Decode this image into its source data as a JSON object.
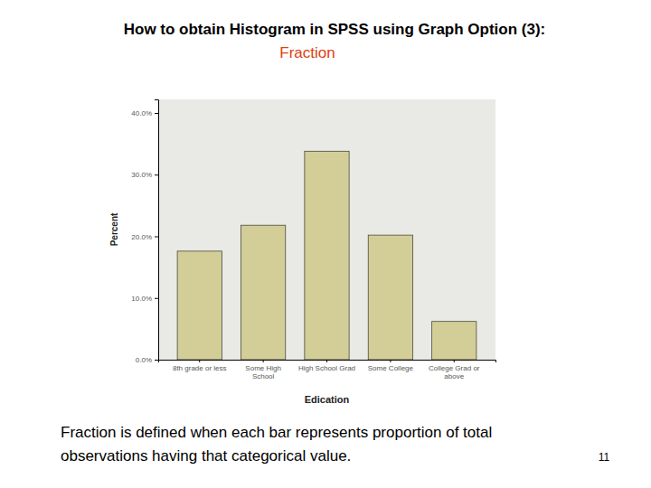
{
  "chart_data": {
    "type": "bar",
    "title": "How to obtain Histogram in SPSS using Graph Option (3):",
    "subtitle": "Fraction",
    "x_label": "Edication",
    "y_label": "Percent",
    "categories": [
      "8th grade or less",
      "Some High School",
      "High School Grad",
      "Some College",
      "College Grad or above"
    ],
    "values": [
      17.6,
      21.8,
      33.8,
      20.2,
      6.2
    ],
    "color": "#d3ce98",
    "ylim": [
      0,
      42.2
    ],
    "yticks": [
      {
        "value": 0,
        "label": "0.0%"
      },
      {
        "value": 10,
        "label": "10.0%"
      },
      {
        "value": 20,
        "label": "20.0%"
      },
      {
        "value": 30,
        "label": "30.0%"
      },
      {
        "value": 40,
        "label": "40.0%"
      }
    ],
    "grid": false
  },
  "notes": {
    "caption": "Fraction is defined when each bar represents proportion of total observations having that categorical value.",
    "page": 11
  }
}
